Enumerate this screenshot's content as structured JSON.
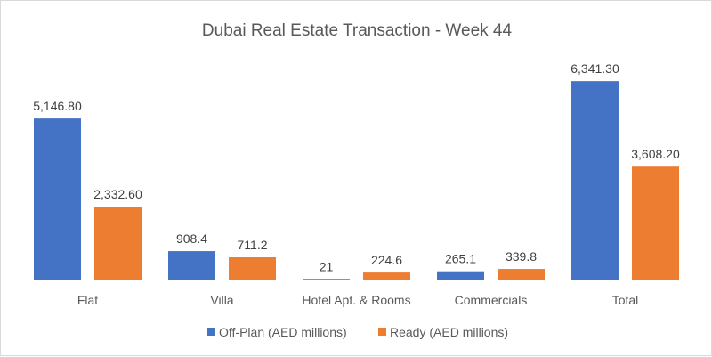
{
  "chart_data": {
    "type": "bar",
    "title": "Dubai Real Estate Transaction - Week 44",
    "categories": [
      "Flat",
      "Villa",
      "Hotel Apt. & Rooms",
      "Commercials",
      "Total"
    ],
    "series": [
      {
        "name": "Off-Plan (AED millions)",
        "color": "#4472c4",
        "values": [
          5146.8,
          908.4,
          21,
          265.1,
          6341.3
        ],
        "labels": [
          "5,146.80",
          "908.4",
          "21",
          "265.1",
          "6,341.30"
        ]
      },
      {
        "name": "Ready (AED millions)",
        "color": "#ed7d31",
        "values": [
          2332.6,
          711.2,
          224.6,
          339.8,
          3608.2
        ],
        "labels": [
          "2,332.60",
          "711.2",
          "224.6",
          "339.8",
          "3,608.20"
        ]
      }
    ],
    "xlabel": "",
    "ylabel": "",
    "ylim": [
      0,
      7000
    ],
    "grid": false,
    "legend": "bottom"
  }
}
